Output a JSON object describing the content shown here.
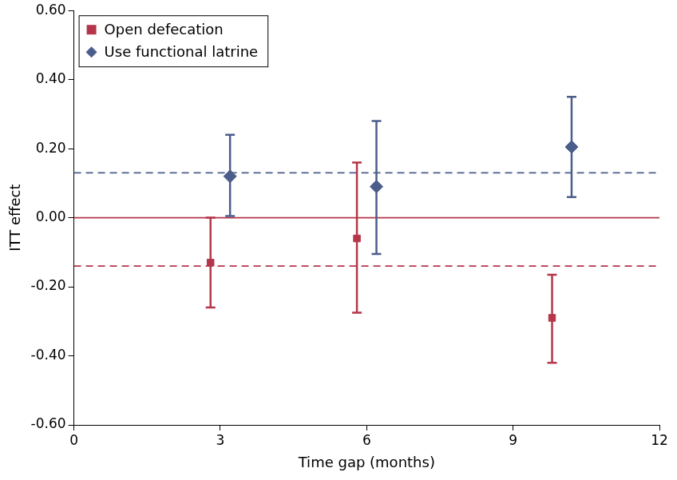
{
  "chart_data": {
    "type": "scatter",
    "x_label": "Time gap (months)",
    "y_label": "ITT effect",
    "xlim": [
      0,
      12
    ],
    "xticks": [
      0,
      3,
      6,
      9,
      12
    ],
    "ylim": [
      -0.6,
      0.6
    ],
    "yticks": [
      {
        "value": -0.6,
        "label": "-0.60"
      },
      {
        "value": -0.4,
        "label": "-0.40"
      },
      {
        "value": -0.2,
        "label": "-0.20"
      },
      {
        "value": 0,
        "label": "0.00"
      },
      {
        "value": 0.2,
        "label": "0.20"
      },
      {
        "value": 0.4,
        "label": "0.40"
      },
      {
        "value": 0.6,
        "label": "0.60"
      }
    ],
    "grid": false,
    "legend": "top left",
    "series": [
      {
        "name": "Open defecation",
        "color": "#b5364a",
        "marker": "square",
        "x": [
          2.8,
          5.8,
          9.8
        ],
        "values": [
          -0.13,
          -0.06,
          -0.29
        ],
        "ci_low": [
          -0.26,
          -0.275,
          -0.42
        ],
        "ci_high": [
          0.0,
          0.16,
          -0.165
        ]
      },
      {
        "name": "Use functional latrine",
        "color": "#4b5d8a",
        "marker": "diamond",
        "x": [
          3.2,
          6.2,
          10.2
        ],
        "values": [
          0.12,
          0.09,
          0.205
        ],
        "ci_low": [
          0.005,
          -0.105,
          0.06
        ],
        "ci_high": [
          0.24,
          0.28,
          0.35
        ]
      }
    ],
    "reference_lines": [
      {
        "y": 0,
        "color": "#b5364a",
        "line_style": "solid"
      },
      {
        "y": 0.13,
        "color": "#4b5d8a",
        "line_style": "dashed"
      },
      {
        "y": -0.14,
        "color": "#b5364a",
        "line_style": "dashed"
      }
    ]
  }
}
